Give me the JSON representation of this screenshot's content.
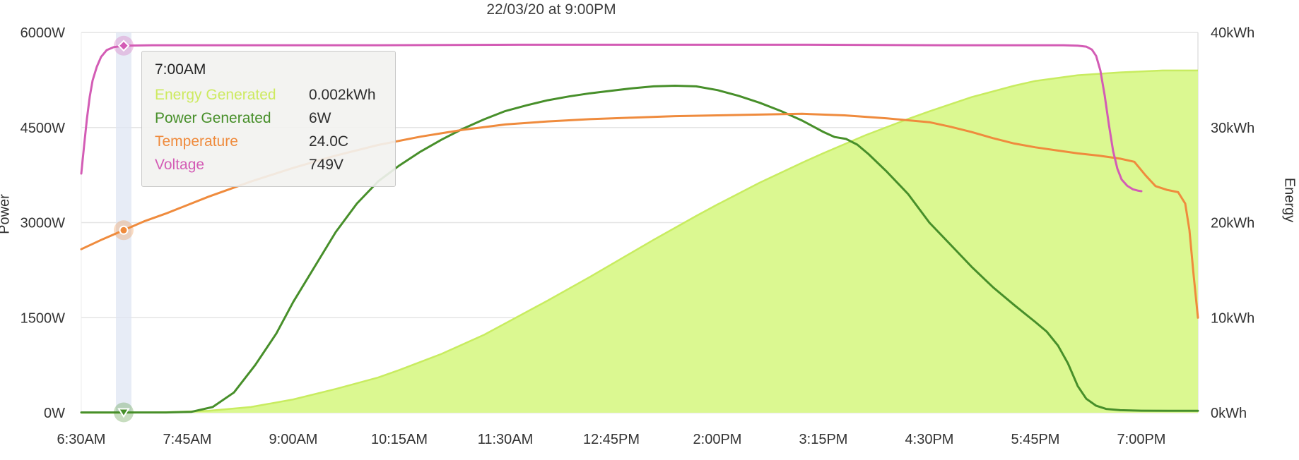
{
  "tooltip": {
    "time": "7:00AM",
    "rows": [
      {
        "label": "Energy Generated",
        "value": "0.002kWh",
        "color": "#cdea5f"
      },
      {
        "label": "Power Generated",
        "value": "6W",
        "color": "#478f2a"
      },
      {
        "label": "Temperature",
        "value": "24.0C",
        "color": "#ef8b3d"
      },
      {
        "label": "Voltage",
        "value": "749V",
        "color": "#d35cb5"
      }
    ]
  },
  "chart_data": {
    "type": "line",
    "title": "22/03/20 at 9:00PM",
    "grid": "horizontal",
    "left_axis": {
      "label": "Power",
      "ticks": [
        "0W",
        "1500W",
        "3000W",
        "4500W",
        "6000W"
      ],
      "range": [
        0,
        6000
      ]
    },
    "right_axis": {
      "label": "Energy",
      "ticks": [
        "0kWh",
        "10kWh",
        "20kWh",
        "30kWh",
        "40kWh"
      ],
      "range": [
        0,
        40
      ]
    },
    "x_ticks": [
      {
        "label": "6:30AM",
        "min": 390
      },
      {
        "label": "7:45AM",
        "min": 465
      },
      {
        "label": "9:00AM",
        "min": 540
      },
      {
        "label": "10:15AM",
        "min": 615
      },
      {
        "label": "11:30AM",
        "min": 690
      },
      {
        "label": "12:45PM",
        "min": 765
      },
      {
        "label": "2:00PM",
        "min": 840
      },
      {
        "label": "3:15PM",
        "min": 915
      },
      {
        "label": "4:30PM",
        "min": 990
      },
      {
        "label": "5:45PM",
        "min": 1065
      },
      {
        "label": "7:00PM",
        "min": 1140
      }
    ],
    "x_range_min": [
      390,
      1180
    ],
    "highlight": {
      "time_min": 420,
      "band_width": 22,
      "band_color": "#dfe5f3",
      "markers": [
        {
          "series": "Voltage",
          "value": 749,
          "shape": "diamond"
        },
        {
          "series": "Temperature",
          "value": 24.0,
          "shape": "circle"
        },
        {
          "series": "Power Generated",
          "value": 6,
          "shape": "triangle-down"
        }
      ]
    },
    "series": [
      {
        "name": "Energy Generated",
        "type": "area",
        "unit": "kWh",
        "color": "#c8ec60",
        "fill": "#dbf891",
        "axis": "right",
        "axis_max": 40,
        "points": [
          [
            390,
            0
          ],
          [
            420,
            0.002
          ],
          [
            450,
            0.05
          ],
          [
            480,
            0.2
          ],
          [
            510,
            0.6
          ],
          [
            540,
            1.4
          ],
          [
            570,
            2.5
          ],
          [
            600,
            3.7
          ],
          [
            615,
            4.5
          ],
          [
            645,
            6.2
          ],
          [
            675,
            8.2
          ],
          [
            690,
            9.4
          ],
          [
            720,
            11.8
          ],
          [
            750,
            14.3
          ],
          [
            765,
            15.6
          ],
          [
            795,
            18.2
          ],
          [
            825,
            20.7
          ],
          [
            840,
            21.9
          ],
          [
            870,
            24.2
          ],
          [
            900,
            26.3
          ],
          [
            915,
            27.3
          ],
          [
            945,
            29.2
          ],
          [
            975,
            30.9
          ],
          [
            990,
            31.7
          ],
          [
            1020,
            33.2
          ],
          [
            1050,
            34.4
          ],
          [
            1065,
            34.9
          ],
          [
            1095,
            35.5
          ],
          [
            1125,
            35.8
          ],
          [
            1155,
            36.0
          ],
          [
            1180,
            36.0
          ]
        ]
      },
      {
        "name": "Power Generated",
        "type": "line",
        "unit": "W",
        "color": "#478f2a",
        "axis": "left",
        "axis_max": 6000,
        "points": [
          [
            390,
            5
          ],
          [
            450,
            5
          ],
          [
            468,
            15
          ],
          [
            483,
            90
          ],
          [
            498,
            320
          ],
          [
            513,
            750
          ],
          [
            528,
            1250
          ],
          [
            540,
            1750
          ],
          [
            555,
            2300
          ],
          [
            570,
            2850
          ],
          [
            585,
            3300
          ],
          [
            600,
            3650
          ],
          [
            615,
            3900
          ],
          [
            630,
            4120
          ],
          [
            645,
            4310
          ],
          [
            660,
            4480
          ],
          [
            675,
            4630
          ],
          [
            690,
            4760
          ],
          [
            705,
            4850
          ],
          [
            720,
            4930
          ],
          [
            735,
            4990
          ],
          [
            750,
            5040
          ],
          [
            765,
            5080
          ],
          [
            780,
            5120
          ],
          [
            795,
            5150
          ],
          [
            810,
            5160
          ],
          [
            825,
            5150
          ],
          [
            840,
            5090
          ],
          [
            855,
            5000
          ],
          [
            870,
            4890
          ],
          [
            885,
            4760
          ],
          [
            900,
            4610
          ],
          [
            915,
            4430
          ],
          [
            923,
            4350
          ],
          [
            931,
            4320
          ],
          [
            939,
            4230
          ],
          [
            947,
            4080
          ],
          [
            960,
            3800
          ],
          [
            975,
            3450
          ],
          [
            990,
            3000
          ],
          [
            1005,
            2650
          ],
          [
            1020,
            2300
          ],
          [
            1035,
            1980
          ],
          [
            1050,
            1700
          ],
          [
            1065,
            1430
          ],
          [
            1073,
            1280
          ],
          [
            1081,
            1060
          ],
          [
            1088,
            780
          ],
          [
            1095,
            420
          ],
          [
            1101,
            220
          ],
          [
            1108,
            110
          ],
          [
            1115,
            60
          ],
          [
            1125,
            40
          ],
          [
            1140,
            32
          ],
          [
            1160,
            30
          ],
          [
            1180,
            30
          ]
        ]
      },
      {
        "name": "Temperature",
        "type": "line",
        "unit": "C",
        "color": "#ef8b3d",
        "axis": "hidden",
        "axis_max": 50,
        "points": [
          [
            390,
            21.5
          ],
          [
            405,
            22.8
          ],
          [
            420,
            24.0
          ],
          [
            435,
            25.2
          ],
          [
            450,
            26.2
          ],
          [
            480,
            28.4
          ],
          [
            510,
            30.4
          ],
          [
            540,
            32.2
          ],
          [
            570,
            33.8
          ],
          [
            600,
            35.2
          ],
          [
            630,
            36.3
          ],
          [
            660,
            37.2
          ],
          [
            690,
            37.9
          ],
          [
            720,
            38.3
          ],
          [
            750,
            38.6
          ],
          [
            780,
            38.8
          ],
          [
            810,
            39.0
          ],
          [
            840,
            39.1
          ],
          [
            870,
            39.2
          ],
          [
            900,
            39.3
          ],
          [
            930,
            39.1
          ],
          [
            960,
            38.7
          ],
          [
            990,
            38.2
          ],
          [
            1005,
            37.6
          ],
          [
            1020,
            36.9
          ],
          [
            1035,
            36.1
          ],
          [
            1050,
            35.4
          ],
          [
            1065,
            34.9
          ],
          [
            1080,
            34.5
          ],
          [
            1095,
            34.1
          ],
          [
            1110,
            33.8
          ],
          [
            1125,
            33.4
          ],
          [
            1135,
            33.0
          ],
          [
            1143,
            31.2
          ],
          [
            1150,
            29.8
          ],
          [
            1158,
            29.3
          ],
          [
            1166,
            29.0
          ],
          [
            1171,
            27.5
          ],
          [
            1174,
            24.0
          ],
          [
            1177,
            18.0
          ],
          [
            1180,
            12.5
          ]
        ]
      },
      {
        "name": "Voltage",
        "type": "line",
        "unit": "V",
        "color": "#d35cb5",
        "axis": "hidden",
        "axis_max": 776,
        "points": [
          [
            390,
            488
          ],
          [
            392,
            545
          ],
          [
            394,
            600
          ],
          [
            396,
            645
          ],
          [
            398,
            678
          ],
          [
            401,
            706
          ],
          [
            404,
            726
          ],
          [
            408,
            740
          ],
          [
            413,
            746
          ],
          [
            420,
            749
          ],
          [
            440,
            750
          ],
          [
            500,
            750
          ],
          [
            600,
            750
          ],
          [
            700,
            751
          ],
          [
            800,
            751
          ],
          [
            900,
            751
          ],
          [
            1000,
            750
          ],
          [
            1060,
            750
          ],
          [
            1085,
            750
          ],
          [
            1095,
            749
          ],
          [
            1101,
            747
          ],
          [
            1105,
            741
          ],
          [
            1108,
            728
          ],
          [
            1111,
            698
          ],
          [
            1114,
            648
          ],
          [
            1117,
            588
          ],
          [
            1120,
            534
          ],
          [
            1123,
            498
          ],
          [
            1126,
            476
          ],
          [
            1130,
            463
          ],
          [
            1134,
            456
          ],
          [
            1138,
            453
          ],
          [
            1140,
            452
          ]
        ]
      }
    ]
  }
}
